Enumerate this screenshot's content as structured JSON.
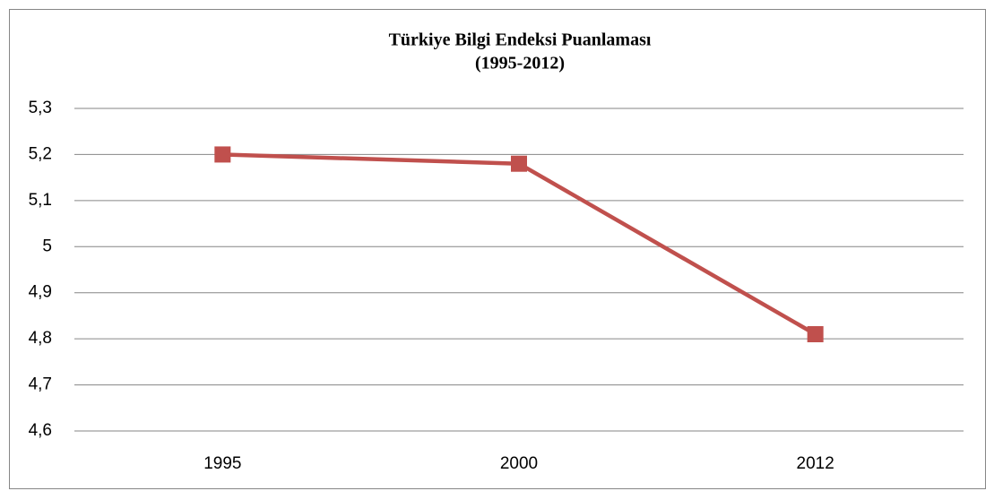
{
  "chart_data": {
    "type": "line",
    "title": "Türkiye Bilgi Endeksi Puanlaması",
    "subtitle": "(1995-2012)",
    "categories": [
      "1995",
      "2000",
      "2012"
    ],
    "values": [
      5.2,
      5.18,
      4.81
    ],
    "color": "#c0504d",
    "ylim": [
      4.6,
      5.3
    ],
    "yticks": [
      {
        "value": 4.6,
        "label": "4,6"
      },
      {
        "value": 4.7,
        "label": "4,7"
      },
      {
        "value": 4.8,
        "label": "4,8"
      },
      {
        "value": 4.9,
        "label": "4,9"
      },
      5,
      {
        "value": 5.1,
        "label": "5,1"
      },
      {
        "value": 5.2,
        "label": "5,2"
      },
      {
        "value": 5.3,
        "label": "5,3"
      }
    ],
    "grid": true
  }
}
